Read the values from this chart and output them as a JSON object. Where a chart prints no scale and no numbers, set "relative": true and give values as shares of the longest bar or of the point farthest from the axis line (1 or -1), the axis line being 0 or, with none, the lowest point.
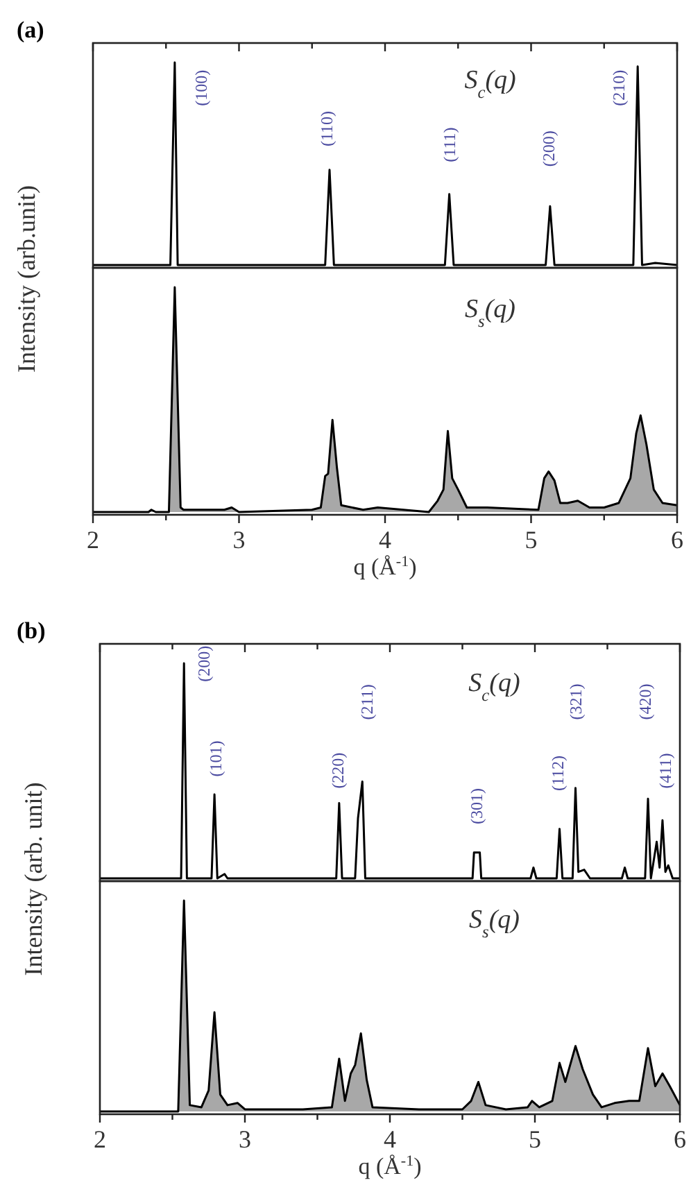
{
  "chart_data": [
    {
      "type": "line",
      "title": "(a)",
      "ylabel": "Intensity (arb.unit)",
      "relative": true,
      "xlim": [
        2,
        6
      ],
      "xticks": [
        2,
        {
          "value": 2.5,
          "label": null
        },
        3,
        {
          "value": 3.5,
          "label": null
        },
        4,
        {
          "value": 4.5,
          "label": null
        },
        5,
        {
          "value": 5.5,
          "label": null
        },
        6
      ],
      "tick_labels": false,
      "color": "#000000",
      "x": [
        2.0,
        2.53,
        2.56,
        2.58,
        3.59,
        3.62,
        3.65,
        4.41,
        4.44,
        4.47,
        5.1,
        5.13,
        5.16,
        5.7,
        5.73,
        5.76,
        5.85,
        6.0
      ],
      "values": [
        0,
        0,
        1.0,
        0,
        0,
        0.47,
        0,
        0,
        0.35,
        0,
        0,
        0.29,
        0,
        0,
        0.98,
        0,
        0.01,
        0
      ],
      "annotations": [
        "S$_{c}$(q)",
        "(100)",
        "(110)",
        "(111)",
        "(200)",
        "(210)"
      ]
    },
    {
      "type": "area",
      "xlabel": "q (Å$^{-1}$)",
      "relative": true,
      "xlim": [
        2,
        6
      ],
      "xticks": [
        2,
        {
          "value": 2.5,
          "label": null
        },
        3,
        {
          "value": 3.5,
          "label": null
        },
        4,
        {
          "value": 4.5,
          "label": null
        },
        5,
        {
          "value": 5.5,
          "label": null
        },
        6
      ],
      "tick_labels": "x",
      "color": "#a8a8a8",
      "x": [
        2.0,
        2.38,
        2.4,
        2.43,
        2.52,
        2.56,
        2.6,
        2.62,
        2.9,
        2.95,
        3.0,
        3.5,
        3.56,
        3.59,
        3.61,
        3.64,
        3.67,
        3.7,
        3.85,
        3.95,
        4.3,
        4.36,
        4.4,
        4.43,
        4.46,
        4.5,
        4.56,
        4.7,
        5.05,
        5.09,
        5.12,
        5.16,
        5.2,
        5.25,
        5.32,
        5.4,
        5.5,
        5.6,
        5.68,
        5.72,
        5.75,
        5.79,
        5.84,
        5.9,
        6.0
      ],
      "values": [
        0,
        0,
        0.01,
        0,
        0,
        1.0,
        0.02,
        0.01,
        0.01,
        0.02,
        0,
        0.01,
        0.02,
        0.16,
        0.17,
        0.41,
        0.2,
        0.03,
        0.01,
        0.02,
        0,
        0.05,
        0.1,
        0.36,
        0.15,
        0.1,
        0.02,
        0.02,
        0.01,
        0.15,
        0.18,
        0.14,
        0.04,
        0.04,
        0.05,
        0.02,
        0.02,
        0.04,
        0.15,
        0.35,
        0.43,
        0.3,
        0.1,
        0.04,
        0.03
      ],
      "annotations": [
        "S$_{s}$(q)"
      ]
    },
    {
      "type": "line",
      "title": "(b)",
      "ylabel": "Intensity (arb. unit)",
      "relative": true,
      "xlim": [
        2,
        6
      ],
      "xticks": [
        2,
        {
          "value": 2.5,
          "label": null
        },
        3,
        {
          "value": 3.5,
          "label": null
        },
        4,
        {
          "value": 4.5,
          "label": null
        },
        5,
        {
          "value": 5.5,
          "label": null
        },
        6
      ],
      "tick_labels": false,
      "color": "#000000",
      "x": [
        2.0,
        2.56,
        2.58,
        2.6,
        2.77,
        2.79,
        2.81,
        2.86,
        2.88,
        3.63,
        3.65,
        3.67,
        3.76,
        3.78,
        3.81,
        3.83,
        4.57,
        4.58,
        4.6,
        4.62,
        4.63,
        4.97,
        4.99,
        5.01,
        5.15,
        5.17,
        5.19,
        5.26,
        5.28,
        5.3,
        5.34,
        5.38,
        5.6,
        5.62,
        5.64,
        5.76,
        5.78,
        5.8,
        5.84,
        5.86,
        5.88,
        5.9,
        5.92,
        5.95,
        6.0
      ],
      "values": [
        0,
        0,
        1.0,
        0,
        0,
        0.39,
        0,
        0.02,
        0,
        0,
        0.35,
        0,
        0,
        0.28,
        0.45,
        0,
        0,
        0.12,
        0.12,
        0.12,
        0,
        0,
        0.05,
        0,
        0,
        0.23,
        0,
        0,
        0.42,
        0.03,
        0.04,
        0,
        0,
        0.05,
        0,
        0,
        0.37,
        0,
        0.17,
        0.05,
        0.27,
        0.03,
        0.06,
        0,
        0
      ],
      "annotations": [
        "S$_{c}$(q)",
        "(200)",
        "(101)",
        "(220)",
        "(211)",
        "(301)",
        "(112)",
        "(321)",
        "(420)",
        "(411)"
      ]
    },
    {
      "type": "area",
      "xlabel": "q (Å$^{-1}$)",
      "relative": true,
      "xlim": [
        2,
        6
      ],
      "xticks": [
        2,
        {
          "value": 2.5,
          "label": null
        },
        3,
        {
          "value": 3.5,
          "label": null
        },
        4,
        {
          "value": 4.5,
          "label": null
        },
        5,
        {
          "value": 5.5,
          "label": null
        },
        6
      ],
      "tick_labels": "x",
      "color": "#a8a8a8",
      "x": [
        2.0,
        2.54,
        2.58,
        2.62,
        2.7,
        2.75,
        2.79,
        2.83,
        2.88,
        2.95,
        3.0,
        3.4,
        3.6,
        3.65,
        3.69,
        3.73,
        3.76,
        3.8,
        3.84,
        3.88,
        4.2,
        4.5,
        4.56,
        4.61,
        4.66,
        4.8,
        4.95,
        4.98,
        5.03,
        5.12,
        5.17,
        5.21,
        5.28,
        5.33,
        5.4,
        5.46,
        5.55,
        5.65,
        5.72,
        5.78,
        5.83,
        5.88,
        5.93,
        6.0
      ],
      "values": [
        0,
        0,
        1.0,
        0.03,
        0.02,
        0.1,
        0.47,
        0.08,
        0.03,
        0.04,
        0.01,
        0.01,
        0.02,
        0.25,
        0.05,
        0.18,
        0.22,
        0.37,
        0.15,
        0.02,
        0.01,
        0.01,
        0.05,
        0.14,
        0.03,
        0.01,
        0.02,
        0.05,
        0.02,
        0.05,
        0.23,
        0.14,
        0.31,
        0.2,
        0.08,
        0.02,
        0.04,
        0.05,
        0.05,
        0.3,
        0.12,
        0.18,
        0.12,
        0.03
      ],
      "annotations": [
        "S$_{s}$(q)"
      ]
    }
  ]
}
